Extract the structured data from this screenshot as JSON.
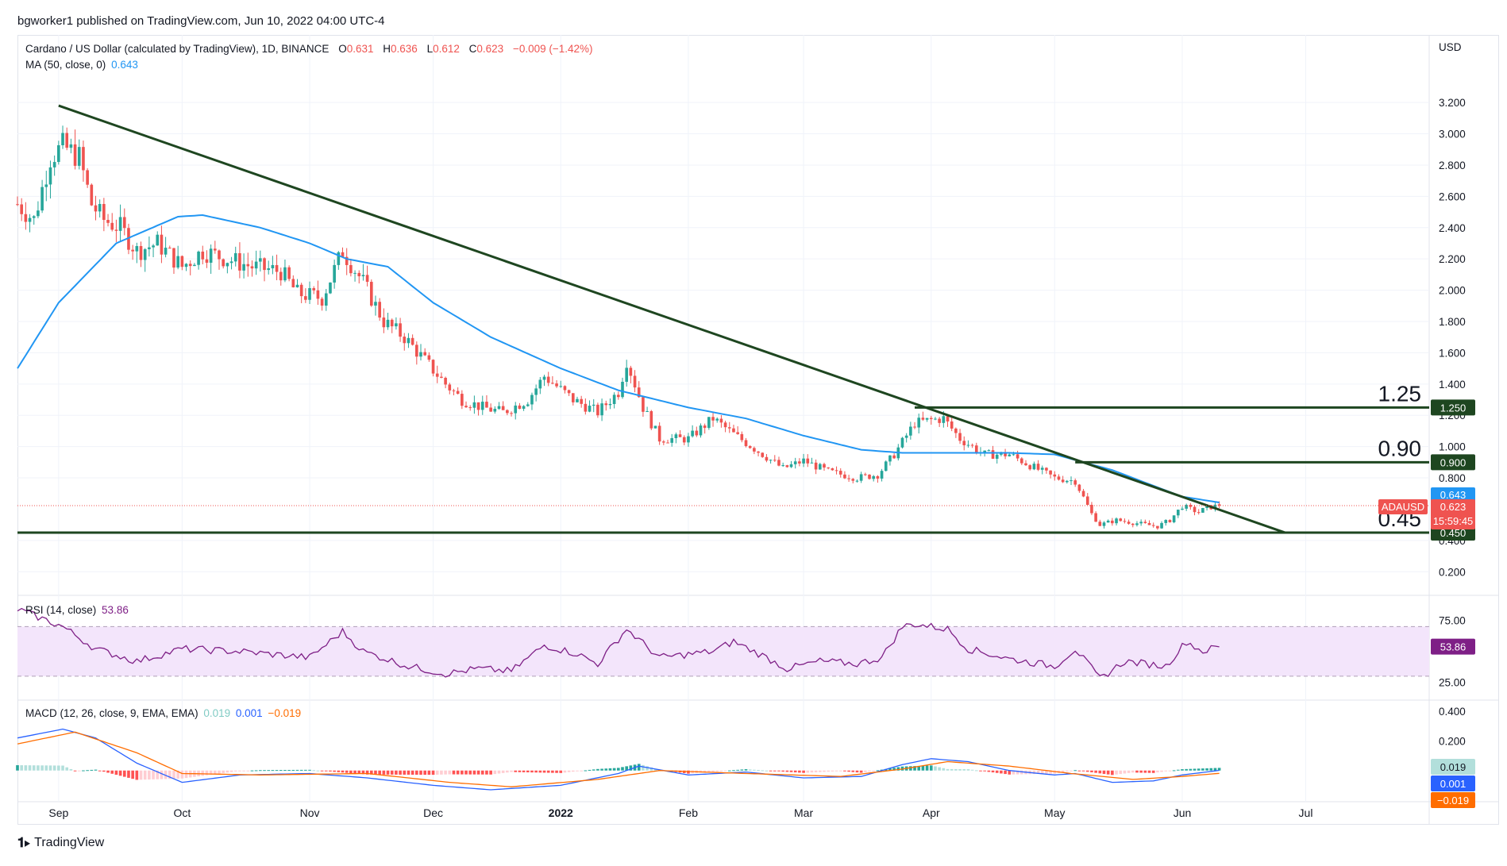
{
  "publisher_line": "bgworker1 published on TradingView.com, Jun 10, 2022 04:00 UTC-4",
  "footer_brand": "TradingView",
  "colors": {
    "up": "#26a69a",
    "down": "#ef5350",
    "ma": "#2196f3",
    "trend": "#1e4620",
    "rsi": "#7e1f86",
    "rsi_band": "#f3e5fb",
    "macd": "#2962ff",
    "signal": "#ff6d00",
    "hist_up_strong": "#26a69a",
    "hist_up_weak": "#b2dfdb",
    "hist_down_strong": "#ff5252",
    "hist_down_weak": "#ffcdd2",
    "grid": "#f0f3fa"
  },
  "legend": {
    "symbol": "Cardano / US Dollar (calculated by TradingView), 1D, BINANCE",
    "o_label": "O",
    "o": "0.631",
    "h_label": "H",
    "h": "0.636",
    "l_label": "L",
    "l": "0.612",
    "c_label": "C",
    "c": "0.623",
    "change": "−0.009 (−1.42%)",
    "ma_label": "MA (50, close, 0)",
    "ma_value": "0.643",
    "rsi_label": "RSI (14, close)",
    "rsi_value": "53.86",
    "macd_label": "MACD (12, 26, close, 9, EMA, EMA)",
    "macd_hist": "0.019",
    "macd_line": "0.001",
    "macd_signal": "−0.019"
  },
  "right_axis_title": "USD",
  "chart_data": {
    "type": "candlestick",
    "symbol": "ADAUSD",
    "interval": "1D",
    "price_axis": {
      "ticks": [
        "0.200",
        "0.400",
        "0.800",
        "1.000",
        "1.200",
        "1.400",
        "1.600",
        "1.800",
        "2.000",
        "2.200",
        "2.400",
        "2.600",
        "2.800",
        "3.000",
        "3.200"
      ],
      "ylim": [
        0.1,
        3.5
      ]
    },
    "time_axis": {
      "labels": [
        "Sep",
        "Oct",
        "Nov",
        "Dec",
        "2022",
        "Feb",
        "Mar",
        "Apr",
        "May",
        "Jun",
        "Jul"
      ],
      "dates": [
        "2021-09-01",
        "2021-10-01",
        "2021-11-01",
        "2021-12-01",
        "2022-01-01",
        "2022-02-01",
        "2022-03-01",
        "2022-04-01",
        "2022-05-01",
        "2022-06-01",
        "2022-07-01"
      ],
      "xlim": [
        "2021-08-22",
        "2022-07-31"
      ]
    },
    "close_anchors": [
      [
        "2021-08-22",
        2.55
      ],
      [
        "2021-08-26",
        2.45
      ],
      [
        "2021-08-30",
        2.85
      ],
      [
        "2021-09-02",
        2.92
      ],
      [
        "2021-09-06",
        2.85
      ],
      [
        "2021-09-09",
        2.55
      ],
      [
        "2021-09-12",
        2.45
      ],
      [
        "2021-09-16",
        2.4
      ],
      [
        "2021-09-20",
        2.25
      ],
      [
        "2021-09-25",
        2.3
      ],
      [
        "2021-10-01",
        2.15
      ],
      [
        "2021-10-06",
        2.25
      ],
      [
        "2021-10-12",
        2.2
      ],
      [
        "2021-10-18",
        2.15
      ],
      [
        "2021-10-25",
        2.12
      ],
      [
        "2021-10-29",
        1.98
      ],
      [
        "2021-11-04",
        1.95
      ],
      [
        "2021-11-09",
        2.25
      ],
      [
        "2021-11-14",
        2.05
      ],
      [
        "2021-11-19",
        1.8
      ],
      [
        "2021-11-24",
        1.7
      ],
      [
        "2021-11-29",
        1.55
      ],
      [
        "2021-12-04",
        1.4
      ],
      [
        "2021-12-08",
        1.3
      ],
      [
        "2021-12-13",
        1.25
      ],
      [
        "2021-12-18",
        1.22
      ],
      [
        "2021-12-24",
        1.3
      ],
      [
        "2021-12-28",
        1.45
      ],
      [
        "2022-01-04",
        1.3
      ],
      [
        "2022-01-10",
        1.22
      ],
      [
        "2022-01-15",
        1.35
      ],
      [
        "2022-01-17",
        1.55
      ],
      [
        "2022-01-21",
        1.25
      ],
      [
        "2022-01-25",
        1.05
      ],
      [
        "2022-02-01",
        1.05
      ],
      [
        "2022-02-07",
        1.18
      ],
      [
        "2022-02-12",
        1.08
      ],
      [
        "2022-02-18",
        0.97
      ],
      [
        "2022-02-24",
        0.86
      ],
      [
        "2022-03-01",
        0.91
      ],
      [
        "2022-03-07",
        0.84
      ],
      [
        "2022-03-14",
        0.8
      ],
      [
        "2022-03-19",
        0.82
      ],
      [
        "2022-03-23",
        0.95
      ],
      [
        "2022-03-28",
        1.15
      ],
      [
        "2022-04-01",
        1.17
      ],
      [
        "2022-04-04",
        1.18
      ],
      [
        "2022-04-08",
        1.05
      ],
      [
        "2022-04-14",
        0.95
      ],
      [
        "2022-04-20",
        0.95
      ],
      [
        "2022-04-25",
        0.88
      ],
      [
        "2022-05-01",
        0.8
      ],
      [
        "2022-05-06",
        0.78
      ],
      [
        "2022-05-10",
        0.57
      ],
      [
        "2022-05-12",
        0.5
      ],
      [
        "2022-05-16",
        0.53
      ],
      [
        "2022-05-21",
        0.51
      ],
      [
        "2022-05-26",
        0.49
      ],
      [
        "2022-05-29",
        0.53
      ],
      [
        "2022-06-01",
        0.62
      ],
      [
        "2022-06-05",
        0.58
      ],
      [
        "2022-06-07",
        0.61
      ],
      [
        "2022-06-10",
        0.623
      ]
    ],
    "ma50_anchors": [
      [
        "2021-08-22",
        1.5
      ],
      [
        "2021-09-01",
        1.92
      ],
      [
        "2021-09-15",
        2.3
      ],
      [
        "2021-09-30",
        2.47
      ],
      [
        "2021-10-06",
        2.48
      ],
      [
        "2021-10-20",
        2.4
      ],
      [
        "2021-11-01",
        2.3
      ],
      [
        "2021-11-10",
        2.2
      ],
      [
        "2021-11-20",
        2.15
      ],
      [
        "2021-12-01",
        1.92
      ],
      [
        "2021-12-15",
        1.7
      ],
      [
        "2022-01-01",
        1.5
      ],
      [
        "2022-01-15",
        1.36
      ],
      [
        "2022-02-01",
        1.25
      ],
      [
        "2022-02-15",
        1.18
      ],
      [
        "2022-03-01",
        1.07
      ],
      [
        "2022-03-15",
        0.98
      ],
      [
        "2022-03-25",
        0.96
      ],
      [
        "2022-04-05",
        0.96
      ],
      [
        "2022-04-20",
        0.96
      ],
      [
        "2022-05-01",
        0.95
      ],
      [
        "2022-05-15",
        0.85
      ],
      [
        "2022-06-01",
        0.68
      ],
      [
        "2022-06-10",
        0.643
      ]
    ],
    "trendline": {
      "from": [
        "2021-09-01",
        3.18
      ],
      "to": [
        "2022-06-26",
        0.45
      ]
    },
    "levels": [
      {
        "value": 1.25,
        "label": "1.25",
        "axis_label": "1.250",
        "from": "2022-03-28"
      },
      {
        "value": 0.9,
        "label": "0.90",
        "axis_label": "0.900",
        "from": "2022-05-06"
      },
      {
        "value": 0.45,
        "label": "0.45",
        "axis_label": "0.450",
        "from": "2021-08-22"
      }
    ],
    "last_price": {
      "value": 0.623,
      "symbol": "ADAUSD",
      "price_label": "0.623",
      "countdown": "15:59:45"
    },
    "ma_tag": {
      "value": 0.643,
      "label": "0.643"
    },
    "rsi": {
      "ticks": [
        "75.00",
        "25.00"
      ],
      "ylim": [
        12,
        92
      ],
      "band": [
        30,
        70
      ],
      "anchors": [
        [
          "2021-08-22",
          84
        ],
        [
          "2021-09-02",
          70
        ],
        [
          "2021-09-10",
          52
        ],
        [
          "2021-09-20",
          42
        ],
        [
          "2021-10-01",
          52
        ],
        [
          "2021-10-15",
          50
        ],
        [
          "2021-11-01",
          45
        ],
        [
          "2021-11-09",
          66
        ],
        [
          "2021-11-14",
          50
        ],
        [
          "2021-11-25",
          38
        ],
        [
          "2021-12-04",
          32
        ],
        [
          "2021-12-12",
          36
        ],
        [
          "2021-12-20",
          34
        ],
        [
          "2021-12-28",
          55
        ],
        [
          "2022-01-05",
          48
        ],
        [
          "2022-01-10",
          40
        ],
        [
          "2022-01-17",
          68
        ],
        [
          "2022-01-25",
          45
        ],
        [
          "2022-02-07",
          50
        ],
        [
          "2022-02-12",
          58
        ],
        [
          "2022-02-20",
          45
        ],
        [
          "2022-02-25",
          36
        ],
        [
          "2022-03-05",
          42
        ],
        [
          "2022-03-14",
          40
        ],
        [
          "2022-03-20",
          45
        ],
        [
          "2022-03-25",
          70
        ],
        [
          "2022-03-28",
          72
        ],
        [
          "2022-04-05",
          68
        ],
        [
          "2022-04-10",
          52
        ],
        [
          "2022-04-20",
          44
        ],
        [
          "2022-05-01",
          38
        ],
        [
          "2022-05-06",
          52
        ],
        [
          "2022-05-12",
          28
        ],
        [
          "2022-05-18",
          42
        ],
        [
          "2022-05-28",
          38
        ],
        [
          "2022-06-02",
          58
        ],
        [
          "2022-06-06",
          50
        ],
        [
          "2022-06-10",
          54
        ]
      ]
    },
    "macd": {
      "ticks": [
        "0.400",
        "0.200"
      ],
      "ylim": [
        -0.2,
        0.46
      ],
      "macd_anchors": [
        [
          "2021-08-22",
          0.22
        ],
        [
          "2021-09-02",
          0.28
        ],
        [
          "2021-09-10",
          0.22
        ],
        [
          "2021-09-20",
          0.05
        ],
        [
          "2021-10-01",
          -0.08
        ],
        [
          "2021-10-15",
          -0.03
        ],
        [
          "2021-11-01",
          -0.02
        ],
        [
          "2021-11-15",
          -0.05
        ],
        [
          "2021-12-01",
          -0.1
        ],
        [
          "2021-12-15",
          -0.13
        ],
        [
          "2022-01-01",
          -0.1
        ],
        [
          "2022-01-15",
          -0.02
        ],
        [
          "2022-01-20",
          0.03
        ],
        [
          "2022-02-01",
          -0.03
        ],
        [
          "2022-02-15",
          -0.01
        ],
        [
          "2022-03-01",
          -0.05
        ],
        [
          "2022-03-15",
          -0.04
        ],
        [
          "2022-03-25",
          0.04
        ],
        [
          "2022-04-01",
          0.08
        ],
        [
          "2022-04-10",
          0.06
        ],
        [
          "2022-04-20",
          0.0
        ],
        [
          "2022-05-01",
          -0.03
        ],
        [
          "2022-05-06",
          -0.02
        ],
        [
          "2022-05-15",
          -0.08
        ],
        [
          "2022-05-25",
          -0.07
        ],
        [
          "2022-06-01",
          -0.03
        ],
        [
          "2022-06-10",
          0.001
        ]
      ],
      "signal_anchors": [
        [
          "2021-08-22",
          0.18
        ],
        [
          "2021-09-05",
          0.26
        ],
        [
          "2021-09-20",
          0.12
        ],
        [
          "2021-10-01",
          -0.02
        ],
        [
          "2021-10-20",
          -0.03
        ],
        [
          "2021-11-15",
          -0.02
        ],
        [
          "2021-12-05",
          -0.08
        ],
        [
          "2021-12-20",
          -0.11
        ],
        [
          "2022-01-10",
          -0.06
        ],
        [
          "2022-01-25",
          0.0
        ],
        [
          "2022-02-15",
          -0.02
        ],
        [
          "2022-03-10",
          -0.04
        ],
        [
          "2022-03-25",
          0.01
        ],
        [
          "2022-04-05",
          0.06
        ],
        [
          "2022-04-20",
          0.03
        ],
        [
          "2022-05-05",
          -0.02
        ],
        [
          "2022-05-20",
          -0.06
        ],
        [
          "2022-06-01",
          -0.04
        ],
        [
          "2022-06-10",
          -0.019
        ]
      ],
      "hist_value": "0.019",
      "macd_value": "0.001",
      "signal_value": "−0.019"
    }
  }
}
